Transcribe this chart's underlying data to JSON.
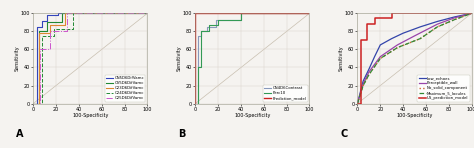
{
  "fig_width": 4.74,
  "fig_height": 1.48,
  "dpi": 100,
  "background_color": "#f5f3f0",
  "plot_bg": "#f5f3f0",
  "panels": [
    {
      "label": "A",
      "xlabel": "100-Specificity",
      "ylabel": "Sensitivity",
      "xlim": [
        0,
        100
      ],
      "ylim": [
        0,
        100
      ],
      "xticks": [
        0,
        20,
        40,
        60,
        80,
        100
      ],
      "yticks": [
        0,
        20,
        40,
        60,
        80,
        100
      ],
      "diagonal": true,
      "curves": [
        {
          "name": "CN5D6DifVamc",
          "color": "#3344bb",
          "linestyle": "-",
          "linewidth": 0.8,
          "x": [
            0,
            3,
            3,
            8,
            8,
            12,
            12,
            22,
            22,
            100
          ],
          "y": [
            0,
            0,
            85,
            85,
            92,
            92,
            98,
            98,
            100,
            100
          ]
        },
        {
          "name": "CV5D6DifVamc",
          "color": "#228833",
          "linestyle": "-",
          "linewidth": 0.8,
          "x": [
            0,
            5,
            5,
            12,
            12,
            25,
            25,
            100
          ],
          "y": [
            0,
            0,
            80,
            80,
            90,
            90,
            100,
            100
          ]
        },
        {
          "name": "C23D6DifVamc",
          "color": "#dd8833",
          "linestyle": "-",
          "linewidth": 0.8,
          "x": [
            0,
            5,
            5,
            15,
            15,
            28,
            28,
            100
          ],
          "y": [
            0,
            0,
            78,
            78,
            87,
            87,
            100,
            100
          ]
        },
        {
          "name": "C24D6DifVamc",
          "color": "#228833",
          "linestyle": "--",
          "linewidth": 0.7,
          "x": [
            0,
            8,
            8,
            18,
            18,
            35,
            35,
            100
          ],
          "y": [
            0,
            0,
            75,
            75,
            83,
            83,
            100,
            100
          ]
        },
        {
          "name": "C25D6DifVamc",
          "color": "#cc55cc",
          "linestyle": "-.",
          "linewidth": 0.7,
          "x": [
            0,
            6,
            6,
            15,
            15,
            30,
            30,
            100
          ],
          "y": [
            0,
            0,
            60,
            60,
            80,
            80,
            100,
            100
          ]
        }
      ]
    },
    {
      "label": "B",
      "xlabel": "100-Specificity",
      "ylabel": "Sensitivity",
      "xlim": [
        0,
        100
      ],
      "ylim": [
        0,
        100
      ],
      "xticks": [
        0,
        20,
        40,
        60,
        80,
        100
      ],
      "yticks": [
        0,
        20,
        40,
        60,
        80,
        100
      ],
      "diagonal": true,
      "curves": [
        {
          "name": "CN4D6Contrast",
          "color": "#8899bb",
          "linestyle": "-",
          "linewidth": 0.8,
          "x": [
            0,
            2,
            2,
            5,
            5,
            10,
            10,
            18,
            18,
            40,
            40,
            100
          ],
          "y": [
            0,
            0,
            75,
            75,
            80,
            80,
            85,
            85,
            93,
            93,
            100,
            100
          ]
        },
        {
          "name": "Perc10",
          "color": "#339955",
          "linestyle": "-",
          "linewidth": 0.8,
          "x": [
            0,
            2,
            2,
            5,
            5,
            12,
            12,
            20,
            20,
            40,
            40,
            100
          ],
          "y": [
            0,
            0,
            40,
            40,
            80,
            80,
            87,
            87,
            93,
            93,
            100,
            100
          ]
        },
        {
          "name": "Prediction_model",
          "color": "#cc2222",
          "linestyle": "-",
          "linewidth": 1.0,
          "x": [
            0,
            0,
            0,
            100
          ],
          "y": [
            0,
            20,
            100,
            100
          ]
        }
      ]
    },
    {
      "label": "C",
      "xlabel": "100-Specificity",
      "ylabel": "Sensitivity",
      "xlim": [
        0,
        100
      ],
      "ylim": [
        0,
        100
      ],
      "xticks": [
        0,
        20,
        40,
        60,
        80,
        100
      ],
      "yticks": [
        0,
        20,
        40,
        60,
        80,
        100
      ],
      "diagonal": true,
      "curves": [
        {
          "name": "Low_echoes",
          "color": "#3344aa",
          "linestyle": "-",
          "linewidth": 0.9,
          "x": [
            0,
            5,
            10,
            15,
            20,
            30,
            40,
            55,
            70,
            85,
            100
          ],
          "y": [
            0,
            25,
            38,
            52,
            65,
            72,
            78,
            85,
            91,
            96,
            100
          ]
        },
        {
          "name": "Perceptible_wall",
          "color": "#9944aa",
          "linestyle": "-",
          "linewidth": 0.9,
          "x": [
            0,
            5,
            10,
            20,
            35,
            50,
            70,
            85,
            100
          ],
          "y": [
            0,
            22,
            35,
            52,
            65,
            75,
            88,
            95,
            100
          ]
        },
        {
          "name": "No_solid_component",
          "color": "#cc6633",
          "linestyle": ":",
          "linewidth": 1.0,
          "x": [
            0,
            5,
            10,
            20,
            35,
            55,
            70,
            85,
            100
          ],
          "y": [
            0,
            20,
            32,
            50,
            62,
            72,
            85,
            93,
            100
          ]
        },
        {
          "name": "Maximum_5_locules",
          "color": "#338833",
          "linestyle": "--",
          "linewidth": 0.9,
          "x": [
            0,
            5,
            10,
            20,
            35,
            55,
            70,
            85,
            100
          ],
          "y": [
            0,
            20,
            32,
            50,
            62,
            72,
            85,
            93,
            100
          ]
        },
        {
          "name": "US_prediction_model",
          "color": "#cc2222",
          "linestyle": "-",
          "linewidth": 1.1,
          "x": [
            0,
            3,
            3,
            8,
            8,
            15,
            15,
            30,
            30,
            100
          ],
          "y": [
            0,
            0,
            70,
            70,
            88,
            88,
            95,
            95,
            100,
            100
          ]
        }
      ]
    }
  ]
}
